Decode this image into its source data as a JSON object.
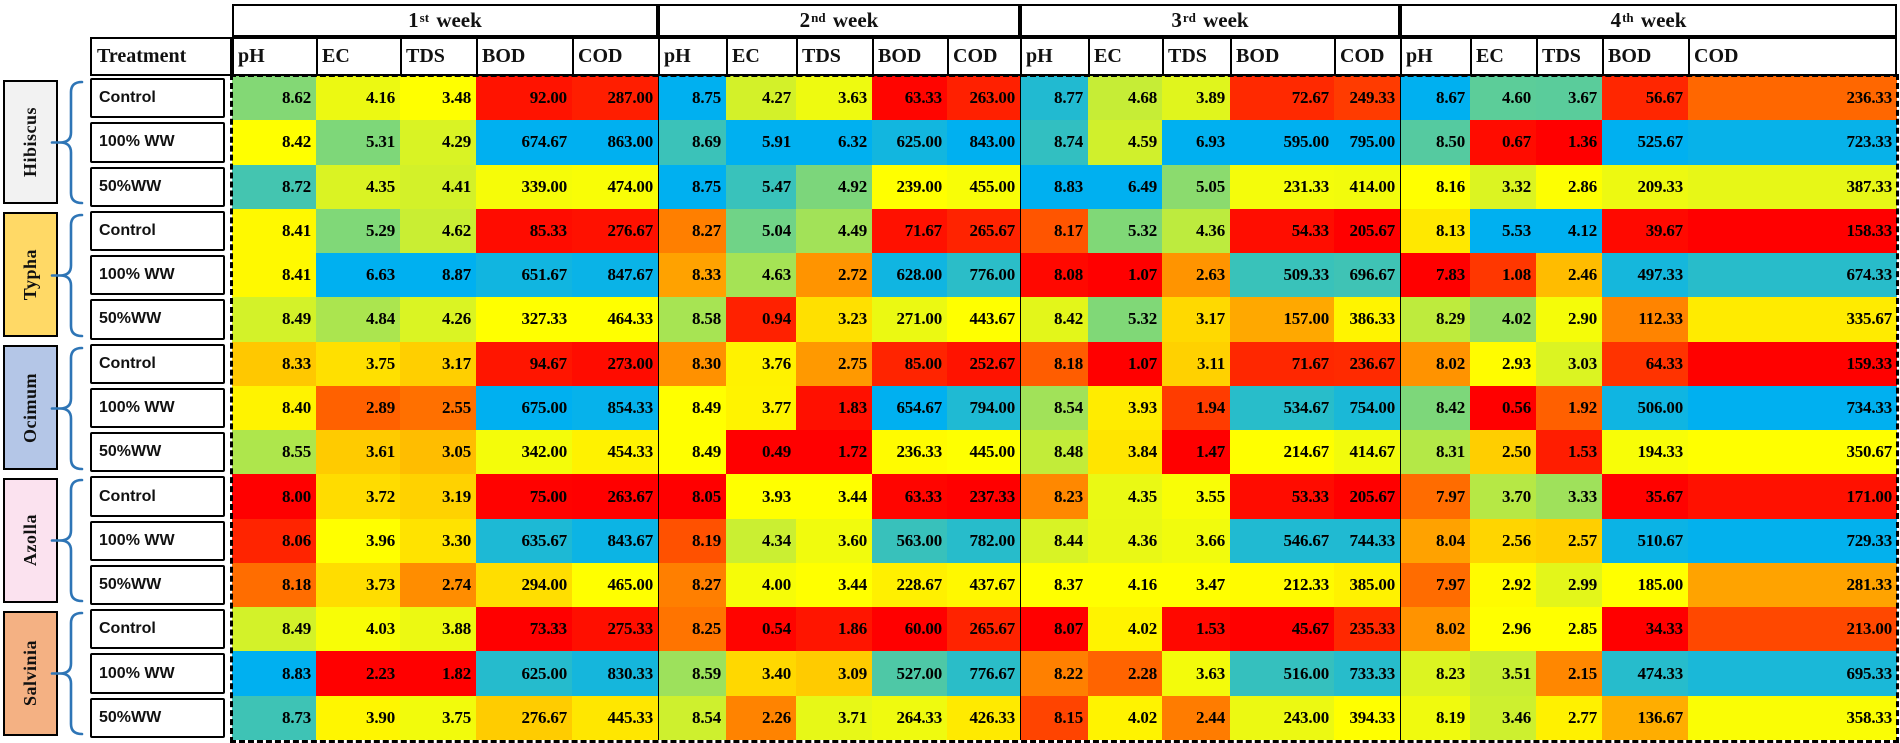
{
  "chart_data": {
    "type": "heatmap",
    "description": "Weekly water-quality parameters (pH, EC, TDS, BOD, COD) for five plant treatments, colored per column min-median-max",
    "weeks": [
      {
        "num": "1",
        "sup": "st",
        "word": "week"
      },
      {
        "num": "2",
        "sup": "nd",
        "word": "week"
      },
      {
        "num": "3",
        "sup": "rd",
        "word": "week"
      },
      {
        "num": "4",
        "sup": "th",
        "word": "week"
      }
    ],
    "parameters": [
      "pH",
      "EC",
      "TDS",
      "BOD",
      "COD"
    ],
    "treatment_header": "Treatment",
    "row_groups": [
      {
        "plant": "Hibiscus",
        "box_color": "#F2F2F2",
        "rows": [
          {
            "treatment": "Control",
            "values": [
              "8.62",
              "4.16",
              "3.48",
              "92.00",
              "287.00",
              "8.75",
              "4.27",
              "3.63",
              "63.33",
              "263.00",
              "8.77",
              "4.68",
              "3.89",
              "72.67",
              "249.33",
              "8.67",
              "4.60",
              "3.67",
              "56.67",
              "236.33"
            ]
          },
          {
            "treatment": "100% WW",
            "values": [
              "8.42",
              "5.31",
              "4.29",
              "674.67",
              "863.00",
              "8.69",
              "5.91",
              "6.32",
              "625.00",
              "843.00",
              "8.74",
              "4.59",
              "6.93",
              "595.00",
              "795.00",
              "8.50",
              "0.67",
              "1.36",
              "525.67",
              "723.33"
            ]
          },
          {
            "treatment": "50%WW",
            "values": [
              "8.72",
              "4.35",
              "4.41",
              "339.00",
              "474.00",
              "8.75",
              "5.47",
              "4.92",
              "239.00",
              "455.00",
              "8.83",
              "6.49",
              "5.05",
              "231.33",
              "414.00",
              "8.16",
              "3.32",
              "2.86",
              "209.33",
              "387.33"
            ]
          }
        ]
      },
      {
        "plant": "Typha",
        "box_color": "#FFD966",
        "rows": [
          {
            "treatment": "Control",
            "values": [
              "8.41",
              "5.29",
              "4.62",
              "85.33",
              "276.67",
              "8.27",
              "5.04",
              "4.49",
              "71.67",
              "265.67",
              "8.17",
              "5.32",
              "4.36",
              "54.33",
              "205.67",
              "8.13",
              "5.53",
              "4.12",
              "39.67",
              "158.33"
            ]
          },
          {
            "treatment": "100% WW",
            "values": [
              "8.41",
              "6.63",
              "8.87",
              "651.67",
              "847.67",
              "8.33",
              "4.63",
              "2.72",
              "628.00",
              "776.00",
              "8.08",
              "1.07",
              "2.63",
              "509.33",
              "696.67",
              "7.83",
              "1.08",
              "2.46",
              "497.33",
              "674.33"
            ]
          },
          {
            "treatment": "50%WW",
            "values": [
              "8.49",
              "4.84",
              "4.26",
              "327.33",
              "464.33",
              "8.58",
              "0.94",
              "3.23",
              "271.00",
              "443.67",
              "8.42",
              "5.32",
              "3.17",
              "157.00",
              "386.33",
              "8.29",
              "4.02",
              "2.90",
              "112.33",
              "335.67"
            ]
          }
        ]
      },
      {
        "plant": "Ocimum",
        "box_color": "#B4C6E7",
        "rows": [
          {
            "treatment": "Control",
            "values": [
              "8.33",
              "3.75",
              "3.17",
              "94.67",
              "273.00",
              "8.30",
              "3.76",
              "2.75",
              "85.00",
              "252.67",
              "8.18",
              "1.07",
              "3.11",
              "71.67",
              "236.67",
              "8.02",
              "2.93",
              "3.03",
              "64.33",
              "159.33"
            ]
          },
          {
            "treatment": "100% WW",
            "values": [
              "8.40",
              "2.89",
              "2.55",
              "675.00",
              "854.33",
              "8.49",
              "3.77",
              "1.83",
              "654.67",
              "794.00",
              "8.54",
              "3.93",
              "1.94",
              "534.67",
              "754.00",
              "8.42",
              "0.56",
              "1.92",
              "506.00",
              "734.33"
            ]
          },
          {
            "treatment": "50%WW",
            "values": [
              "8.55",
              "3.61",
              "3.05",
              "342.00",
              "454.33",
              "8.49",
              "0.49",
              "1.72",
              "236.33",
              "445.00",
              "8.48",
              "3.84",
              "1.47",
              "214.67",
              "414.67",
              "8.31",
              "2.50",
              "1.53",
              "194.33",
              "350.67"
            ]
          }
        ]
      },
      {
        "plant": "Azolla",
        "box_color": "#FBE2EF",
        "rows": [
          {
            "treatment": "Control",
            "values": [
              "8.00",
              "3.72",
              "3.19",
              "75.00",
              "263.67",
              "8.05",
              "3.93",
              "3.44",
              "63.33",
              "237.33",
              "8.23",
              "4.35",
              "3.55",
              "53.33",
              "205.67",
              "7.97",
              "3.70",
              "3.33",
              "35.67",
              "171.00"
            ]
          },
          {
            "treatment": "100% WW",
            "values": [
              "8.06",
              "3.96",
              "3.30",
              "635.67",
              "843.67",
              "8.19",
              "4.34",
              "3.60",
              "563.00",
              "782.00",
              "8.44",
              "4.36",
              "3.66",
              "546.67",
              "744.33",
              "8.04",
              "2.56",
              "2.57",
              "510.67",
              "729.33"
            ]
          },
          {
            "treatment": "50%WW",
            "values": [
              "8.18",
              "3.73",
              "2.74",
              "294.00",
              "465.00",
              "8.27",
              "4.00",
              "3.44",
              "228.67",
              "437.67",
              "8.37",
              "4.16",
              "3.47",
              "212.33",
              "385.00",
              "7.97",
              "2.92",
              "2.99",
              "185.00",
              "281.33"
            ]
          }
        ]
      },
      {
        "plant": "Salvinia",
        "box_color": "#F4B183",
        "rows": [
          {
            "treatment": "Control",
            "values": [
              "8.49",
              "4.03",
              "3.88",
              "73.33",
              "275.33",
              "8.25",
              "0.54",
              "1.86",
              "60.00",
              "265.67",
              "8.07",
              "4.02",
              "1.53",
              "45.67",
              "235.33",
              "8.02",
              "2.96",
              "2.85",
              "34.33",
              "213.00"
            ]
          },
          {
            "treatment": "100% WW",
            "values": [
              "8.83",
              "2.23",
              "1.82",
              "625.00",
              "830.33",
              "8.59",
              "3.40",
              "3.09",
              "527.00",
              "776.67",
              "8.22",
              "2.28",
              "3.63",
              "516.00",
              "733.33",
              "8.23",
              "3.51",
              "2.15",
              "474.33",
              "695.33"
            ]
          },
          {
            "treatment": "50%WW",
            "values": [
              "8.73",
              "3.90",
              "3.75",
              "276.67",
              "445.33",
              "8.54",
              "2.26",
              "3.71",
              "264.33",
              "426.33",
              "8.15",
              "4.02",
              "2.44",
              "243.00",
              "394.33",
              "8.19",
              "3.46",
              "2.77",
              "136.67",
              "358.33"
            ]
          }
        ]
      }
    ],
    "color_scale": {
      "applied_per": "each week-parameter column (15 values)",
      "anchors": "min / median / max",
      "min_color": "#FF0000",
      "mid_color": "#FFFF00",
      "max_color": "#00B0F0"
    },
    "accents": {
      "brace_color": "#2E75B6",
      "border_color": "#000000",
      "background": "#FFFFFF"
    }
  }
}
